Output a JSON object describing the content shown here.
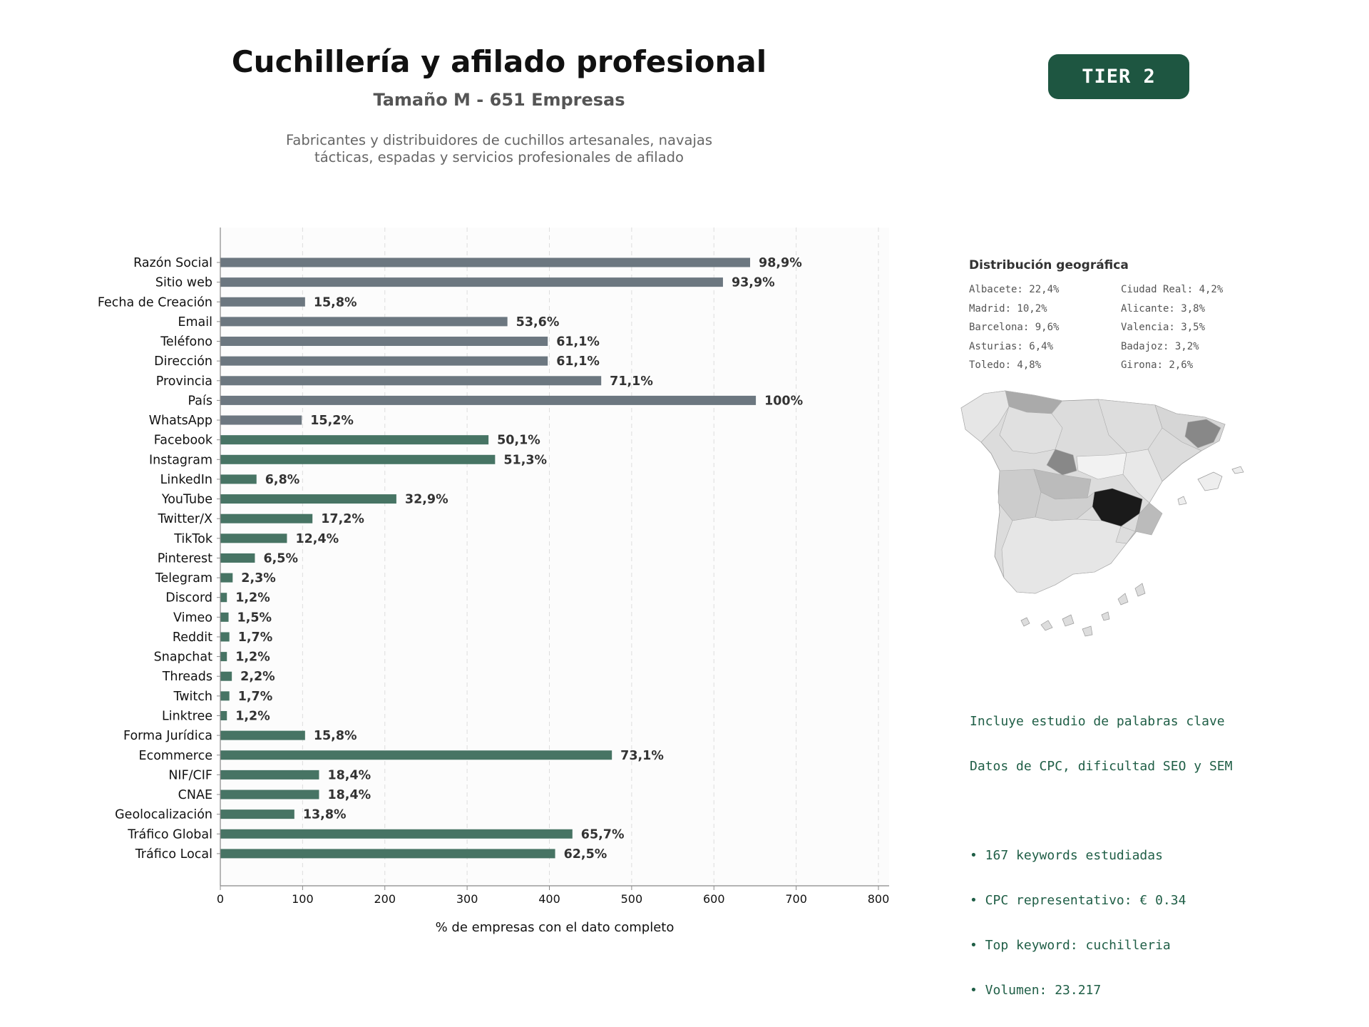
{
  "header": {
    "title": "Cuchillería y afilado profesional",
    "subtitle": "Tamaño M - 651 Empresas",
    "description_line1": "Fabricantes y distribuidores de cuchillos artesanales, navajas",
    "description_line2": "tácticas, espadas y servicios profesionales de afilado",
    "tier_label": "TIER 2",
    "tier_color": "#1e5641"
  },
  "chart_data": {
    "type": "bar",
    "orientation": "horizontal",
    "title": "",
    "xlabel": "% de empresas con el dato completo",
    "ylabel": "",
    "xlim": [
      0,
      813
    ],
    "xticks": [
      0,
      100,
      200,
      300,
      400,
      500,
      600,
      700,
      800
    ],
    "grid": "vertical dashed",
    "categories": [
      "Razón Social",
      "Sitio web",
      "Fecha de Creación",
      "Email",
      "Teléfono",
      "Dirección",
      "Provincia",
      "País",
      "WhatsApp",
      "Facebook",
      "Instagram",
      "LinkedIn",
      "YouTube",
      "Twitter/X",
      "TikTok",
      "Pinterest",
      "Telegram",
      "Discord",
      "Vimeo",
      "Reddit",
      "Snapchat",
      "Threads",
      "Twitch",
      "Linktree",
      "Forma Jurídica",
      "Ecommerce",
      "NIF/CIF",
      "CNAE",
      "Geolocalización",
      "Tráfico Global",
      "Tráfico Local"
    ],
    "values": [
      644,
      611,
      103,
      349,
      398,
      398,
      463,
      651,
      99,
      326,
      334,
      44,
      214,
      112,
      81,
      42,
      15,
      8,
      10,
      11,
      8,
      14,
      11,
      8,
      103,
      476,
      120,
      120,
      90,
      428,
      407
    ],
    "value_labels": [
      "98,9%",
      "93,9%",
      "15,8%",
      "53,6%",
      "61,1%",
      "61,1%",
      "71,1%",
      "100%",
      "15,2%",
      "50,1%",
      "51,3%",
      "6,8%",
      "32,9%",
      "17,2%",
      "12,4%",
      "6,5%",
      "2,3%",
      "1,2%",
      "1,5%",
      "1,7%",
      "1,2%",
      "2,2%",
      "1,7%",
      "1,2%",
      "15,8%",
      "73,1%",
      "18,4%",
      "18,4%",
      "13,8%",
      "65,7%",
      "62,5%"
    ],
    "groups": [
      "basic",
      "basic",
      "basic",
      "basic",
      "basic",
      "basic",
      "basic",
      "basic",
      "basic",
      "extra",
      "extra",
      "extra",
      "extra",
      "extra",
      "extra",
      "extra",
      "extra",
      "extra",
      "extra",
      "extra",
      "extra",
      "extra",
      "extra",
      "extra",
      "extra",
      "extra",
      "extra",
      "extra",
      "extra",
      "extra",
      "extra"
    ],
    "colors": {
      "basic": "#6c7780",
      "extra": "#477464",
      "plot_background": "#fcfcfc",
      "gridline": "#dddddd",
      "axis": "#888888",
      "label": "#333333"
    }
  },
  "geo": {
    "title": "Distribución geográfica",
    "items": [
      "Albacete: 22,4%",
      "Ciudad Real: 4,2%",
      "Madrid: 10,2%",
      "Alicante: 3,8%",
      "Barcelona: 9,6%",
      "Valencia: 3,5%",
      "Asturias: 6,4%",
      "Badajoz: 3,2%",
      "Toledo: 4,8%",
      "Girona: 2,6%"
    ],
    "map_colors": {
      "highest": "#1a1a1a",
      "high": "#888888",
      "medium": "#aaaaaa",
      "low": "#cccccc",
      "lowest": "#eeeeee"
    }
  },
  "keywords": {
    "line1": "Incluye estudio de palabras clave",
    "line2": "Datos de CPC, dificultad SEO y SEM",
    "bullets": [
      "• 167 keywords estudiadas",
      "• CPC representativo: € 0.34",
      "• Top keyword: cuchilleria",
      "• Volumen: 23.217"
    ]
  }
}
